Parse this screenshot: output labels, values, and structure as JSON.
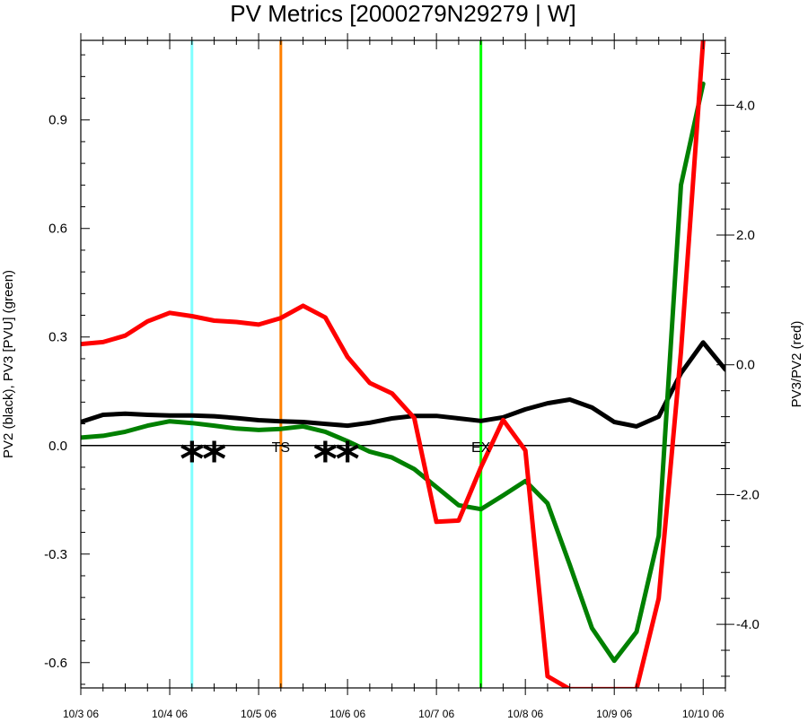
{
  "chart_data": {
    "type": "line",
    "title": "PV Metrics [2000279N29279 | W]",
    "ylabel_left": "PV2 (black), PV3 [PVU] (green)",
    "ylabel_right": "PV3/PV2 (red)",
    "xlabel": "",
    "x_ticks": [
      "10/3 06",
      "10/4 06",
      "10/5 06",
      "10/6 06",
      "10/7 06",
      "10/8 06",
      "10/9 06",
      "10/10 06"
    ],
    "x": [
      0,
      0.25,
      0.5,
      0.75,
      1,
      1.25,
      1.5,
      1.75,
      2,
      2.25,
      2.5,
      2.75,
      3,
      3.25,
      3.5,
      3.75,
      4,
      4.25,
      4.5,
      4.75,
      5,
      5.25,
      5.5,
      5.75,
      6,
      6.25,
      6.5,
      6.75,
      7,
      7.25
    ],
    "xlim": [
      0,
      7.25
    ],
    "ylim_left": [
      -0.67,
      1.12
    ],
    "ylim_right": [
      -4.98,
      5.0
    ],
    "yticks_left": [
      "-0.6",
      "-0.3",
      "0.0",
      "0.3",
      "0.6",
      "0.9"
    ],
    "yticks_left_values": [
      -0.6,
      -0.3,
      0.0,
      0.3,
      0.6,
      0.9
    ],
    "yticks_right": [
      "-4.0",
      "-2.0",
      "0.0",
      "2.0",
      "4.0"
    ],
    "yticks_right_values": [
      -4.0,
      -2.0,
      0.0,
      2.0,
      4.0
    ],
    "series": [
      {
        "name": "PV2",
        "axis": "left",
        "color": "#000000",
        "values": [
          0.065,
          0.085,
          0.088,
          0.085,
          0.083,
          0.083,
          0.081,
          0.076,
          0.07,
          0.067,
          0.065,
          0.06,
          0.055,
          0.063,
          0.075,
          0.082,
          0.082,
          0.075,
          0.068,
          0.078,
          0.1,
          0.117,
          0.127,
          0.105,
          0.065,
          0.053,
          0.08,
          0.2,
          0.285,
          0.21
        ]
      },
      {
        "name": "PV3",
        "axis": "left",
        "color": "#008000",
        "values": [
          0.022,
          0.027,
          0.038,
          0.055,
          0.067,
          0.062,
          0.055,
          0.047,
          0.043,
          0.046,
          0.053,
          0.038,
          0.012,
          -0.017,
          -0.033,
          -0.065,
          -0.115,
          -0.165,
          -0.176,
          -0.138,
          -0.098,
          -0.16,
          -0.33,
          -0.505,
          -0.595,
          -0.515,
          -0.25,
          0.72,
          1.0,
          null
        ]
      },
      {
        "name": "PV3/PV2",
        "axis": "right",
        "color": "#ff0000",
        "values": [
          0.32,
          0.35,
          0.45,
          0.67,
          0.8,
          0.75,
          0.68,
          0.66,
          0.62,
          0.72,
          0.91,
          0.73,
          0.12,
          -0.28,
          -0.44,
          -0.82,
          -2.42,
          -2.4,
          -1.58,
          -0.85,
          -1.32,
          -4.8,
          -5.0,
          -5.0,
          -5.0,
          -5.0,
          -3.6,
          0.2,
          5.0,
          null
        ]
      }
    ],
    "zero_line": 0.0,
    "vlines": [
      {
        "x": 1.25,
        "color": "#7fffff"
      },
      {
        "x": 2.25,
        "color": "#ff7f00"
      },
      {
        "x": 4.5,
        "color": "#00ff00"
      }
    ],
    "annotations": [
      {
        "text": "TS",
        "x": 2.25,
        "y": 0.0
      },
      {
        "text": "EX",
        "x": 4.5,
        "y": 0.0
      }
    ],
    "markers": [
      {
        "symbol": "*",
        "x": 1.25
      },
      {
        "symbol": "*",
        "x": 1.5
      },
      {
        "symbol": "*",
        "x": 2.75
      },
      {
        "symbol": "*",
        "x": 3.0
      }
    ],
    "grid": false,
    "legend": "none"
  }
}
